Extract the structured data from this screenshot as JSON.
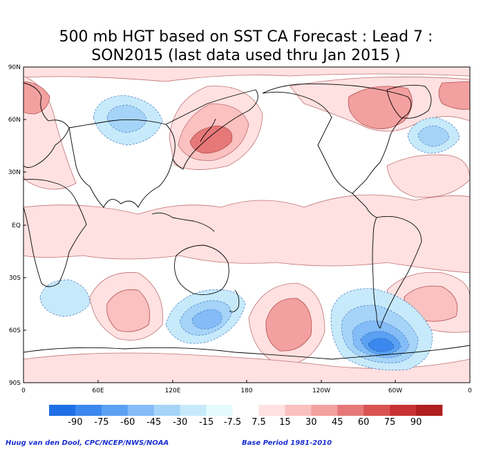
{
  "title": {
    "line1": "500 mb HGT based on SST CA Forecast : Lead 7 :",
    "line2": "SON2015 (last data used thru Jan 2015 )"
  },
  "axes": {
    "lat_labels": [
      "90N",
      "60N",
      "30N",
      "EQ",
      "30S",
      "60S",
      "90S"
    ],
    "lon_labels": [
      "0",
      "60E",
      "120E",
      "180",
      "120W",
      "60W",
      "0"
    ]
  },
  "colorbar": {
    "labels": [
      "-90",
      "-75",
      "-60",
      "-45",
      "-30",
      "-15",
      "-7.5",
      "7.5",
      "15",
      "30",
      "45",
      "60",
      "75",
      "90"
    ],
    "colors": [
      "#1f6fe6",
      "#3b88ee",
      "#5aa1f3",
      "#83bcf7",
      "#a6d4f8",
      "#c7eafb",
      "#e4fafd",
      "#ffffff",
      "#ffe1e1",
      "#fbc0c0",
      "#f3a0a0",
      "#e67878",
      "#d95353",
      "#c93232",
      "#b01e1e"
    ]
  },
  "footer": {
    "credit": "Huug van den Dool, CPC/NCEP/NWS/NOAA",
    "base_period": "Base Period 1981-2010"
  },
  "colors": {
    "pos_light": "#ffe1e1",
    "pos_mid": "#fbc0c0",
    "pos_strong": "#f3a0a0",
    "pos_stronger": "#e67878",
    "neg_light": "#c7eafb",
    "neg_mid": "#a6d4f8",
    "neg_strong": "#83bcf7",
    "neg_stronger": "#5aa1f3",
    "neg_strongest": "#3b88ee"
  }
}
